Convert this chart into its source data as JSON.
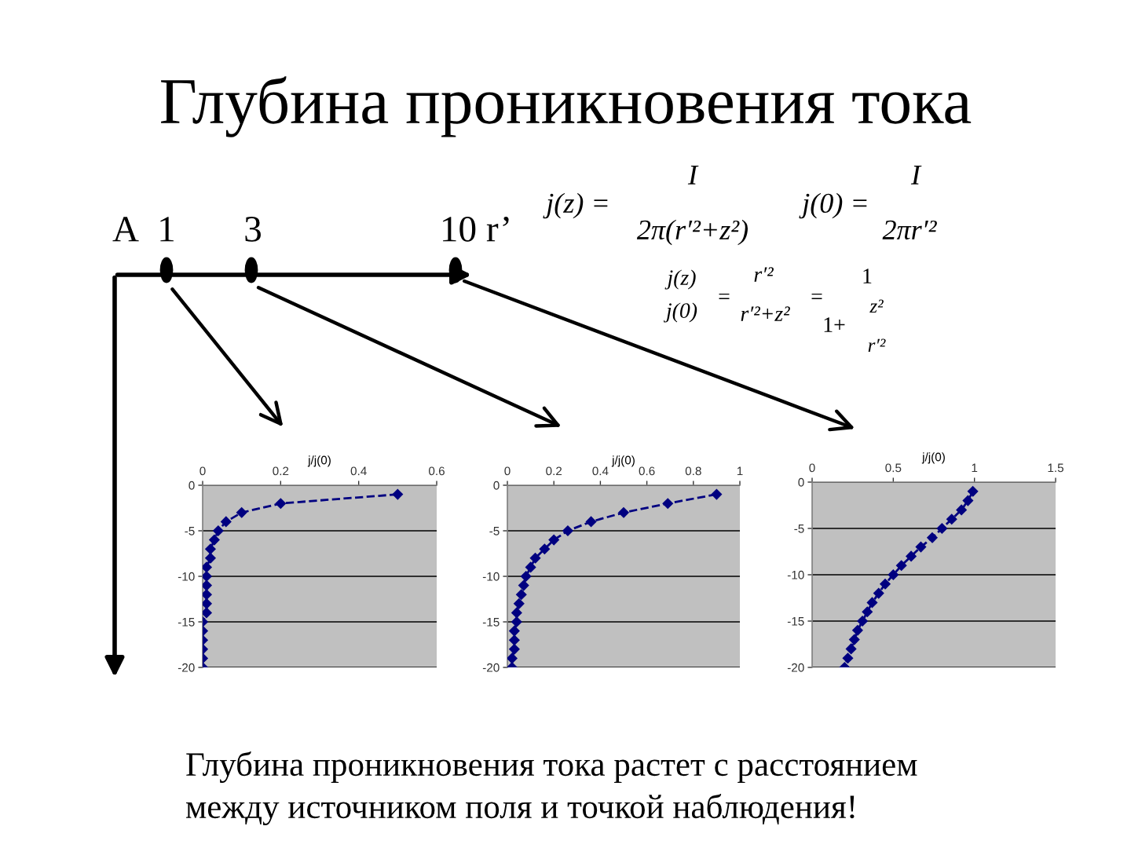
{
  "chart_data": [
    {
      "type": "other",
      "title": "Глубина проникновения тока",
      "annotations": [
        "A",
        "1",
        "3",
        "10 r’",
        "j(z) =",
        "I",
        "2π(r′²+z²)",
        "j(0) =",
        "I",
        "2πr′²",
        "j(z)",
        "j(0)",
        "=",
        "r′²",
        "r′²+z²",
        "=",
        "1",
        "1+",
        "z²",
        "r′²",
        "Глубина проникновения тока растет с расстоянием\nмежду источником поля и точкой наблюдения!"
      ]
    },
    {
      "type": "line",
      "xlabel": "j/j(0)",
      "color": "#000080",
      "marker": "diamond",
      "line_style": "dashed",
      "grid": "y",
      "x": [
        0.5,
        0.2,
        0.1,
        0.06,
        0.04,
        0.03,
        0.02,
        0.02,
        0.01,
        0.01,
        0.01,
        0.01,
        0.01,
        0.01,
        0,
        0,
        0,
        0,
        0,
        0
      ],
      "values": [
        -1,
        -2,
        -3,
        -4,
        -5,
        -6,
        -7,
        -8,
        -9,
        -10,
        -11,
        -12,
        -13,
        -14,
        -15,
        -16,
        -17,
        -18,
        -19,
        -20
      ],
      "xlim": [
        0,
        0.6
      ],
      "xticks": [
        0,
        0.2,
        0.4,
        0.6
      ],
      "ylim": [
        -20,
        0
      ],
      "yticks": [
        -20,
        -15,
        -10,
        -5,
        0
      ]
    },
    {
      "type": "line",
      "xlabel": "j/j(0)",
      "color": "#000080",
      "marker": "diamond",
      "line_style": "dashed",
      "grid": "y",
      "x": [
        0.9,
        0.69,
        0.5,
        0.36,
        0.26,
        0.2,
        0.16,
        0.12,
        0.1,
        0.08,
        0.07,
        0.06,
        0.05,
        0.04,
        0.04,
        0.03,
        0.03,
        0.03,
        0.02,
        0.02
      ],
      "values": [
        -1,
        -2,
        -3,
        -4,
        -5,
        -6,
        -7,
        -8,
        -9,
        -10,
        -11,
        -12,
        -13,
        -14,
        -15,
        -16,
        -17,
        -18,
        -19,
        -20
      ],
      "xlim": [
        0,
        1
      ],
      "xticks": [
        0,
        0.2,
        0.4,
        0.6,
        0.8,
        1
      ],
      "ylim": [
        -20,
        0
      ],
      "yticks": [
        -20,
        -15,
        -10,
        -5,
        0
      ]
    },
    {
      "type": "line",
      "xlabel": "j/j(0)",
      "color": "#000080",
      "marker": "diamond",
      "line_style": "dashed",
      "grid": "y",
      "x": [
        0.99,
        0.96,
        0.92,
        0.86,
        0.8,
        0.74,
        0.67,
        0.61,
        0.55,
        0.5,
        0.45,
        0.41,
        0.37,
        0.34,
        0.31,
        0.28,
        0.26,
        0.24,
        0.22,
        0.2
      ],
      "values": [
        -1,
        -2,
        -3,
        -4,
        -5,
        -6,
        -7,
        -8,
        -9,
        -10,
        -11,
        -12,
        -13,
        -14,
        -15,
        -16,
        -17,
        -18,
        -19,
        -20
      ],
      "xlim": [
        0,
        1.5
      ],
      "xticks": [
        0,
        0.5,
        1,
        1.5
      ],
      "ylim": [
        -20,
        0
      ],
      "yticks": [
        -20,
        -15,
        -10,
        -5,
        0
      ]
    }
  ]
}
